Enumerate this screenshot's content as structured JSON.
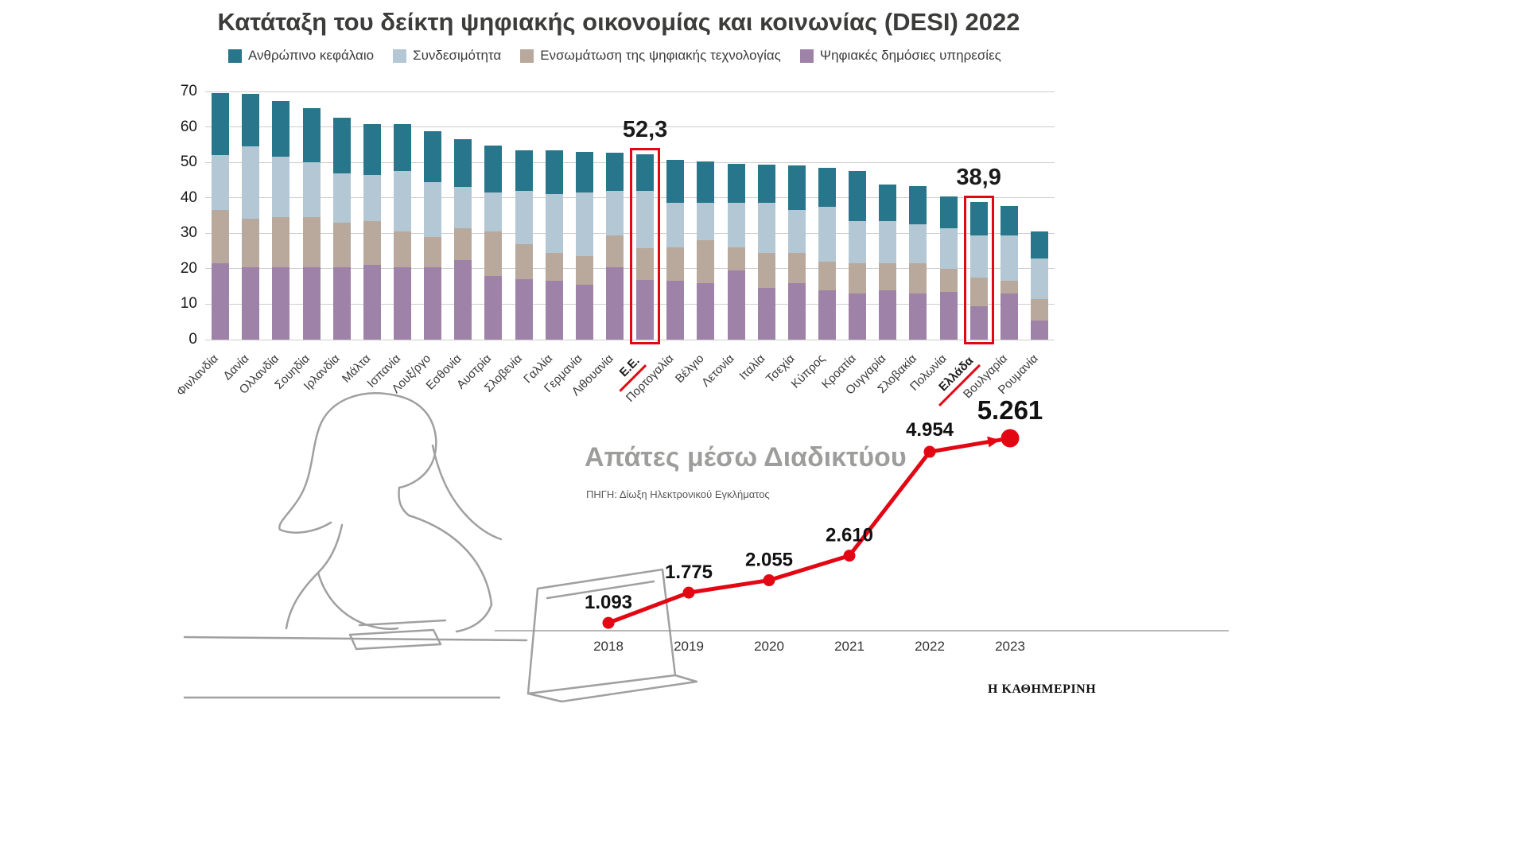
{
  "brand": {
    "logo_text": "Η ΚΑΘΗΜΕΡΙΝΗ"
  },
  "chart_data": [
    {
      "type": "bar",
      "stacked": true,
      "title": "Κατάταξη του δείκτη ψηφιακής οικονομίας και κοινωνίας (DESI) 2022",
      "grid": true,
      "legend_position": "top",
      "ylim": [
        0,
        70
      ],
      "yticks": [
        0,
        10,
        20,
        30,
        40,
        50,
        60,
        70
      ],
      "legend": [
        {
          "label": "Ανθρώπινο κεφάλαιο",
          "color": "#27768c"
        },
        {
          "label": "Συνδεσιμότητα",
          "color": "#b3c8d4"
        },
        {
          "label": "Ενσωμάτωση της ψηφιακής τεχνολογίας",
          "color": "#b8a99c"
        },
        {
          "label": "Ψηφιακές δημόσιες υπηρεσίες",
          "color": "#9f82a8"
        }
      ],
      "categories": [
        "Φινλανδία",
        "Δανία",
        "Ολλανδία",
        "Σουηδία",
        "Ιρλανδία",
        "Μάλτα",
        "Ισπανία",
        "Λουξ/ργο",
        "Εσθονία",
        "Αυστρία",
        "Σλοβενία",
        "Γαλλία",
        "Γερμανία",
        "Λιθουανία",
        "Ε.Ε.",
        "Πορτογαλία",
        "Βέλγιο",
        "Λετονία",
        "Ιταλία",
        "Τσεχία",
        "Κύπρος",
        "Κροατία",
        "Ουγγαρία",
        "Σλοβακία",
        "Πολωνία",
        "Ελλάδα",
        "Βουλγαρία",
        "Ρουμανία"
      ],
      "series": [
        {
          "name": "Ψηφιακές δημόσιες υπηρεσίες",
          "color": "#9f82a8",
          "values": [
            21.5,
            20.5,
            20.5,
            20.5,
            20.5,
            21,
            20.5,
            20.5,
            22.5,
            18,
            17,
            16.5,
            15.5,
            20.5,
            16.8,
            16.5,
            16,
            19.5,
            14.5,
            16,
            14,
            13,
            14,
            13,
            13.5,
            9.5,
            13,
            5.5
          ]
        },
        {
          "name": "Ενσωμάτωση της ψηφιακής τεχνολογίας",
          "color": "#b8a99c",
          "values": [
            15,
            13.5,
            14,
            14,
            12.5,
            12.5,
            10,
            8.5,
            9,
            12.5,
            10,
            8,
            8,
            9,
            9,
            9.5,
            12,
            6.5,
            10,
            8.5,
            8,
            8.5,
            7.5,
            8.5,
            6.5,
            8,
            3.5,
            6
          ]
        },
        {
          "name": "Συνδεσιμότητα",
          "color": "#b3c8d4",
          "values": [
            15.5,
            20.5,
            17,
            15.5,
            14,
            13,
            17,
            15.5,
            11.5,
            11,
            15,
            16.5,
            18,
            12.5,
            16.2,
            12.5,
            10.5,
            12.5,
            14,
            12,
            15.5,
            12,
            12,
            11,
            11.5,
            12,
            13,
            11.5
          ]
        },
        {
          "name": "Ανθρώπινο κεφάλαιο",
          "color": "#27768c",
          "values": [
            17.6,
            14.8,
            15.9,
            15.2,
            15.7,
            14.4,
            13.3,
            14.4,
            13.5,
            13.2,
            11.4,
            12.3,
            11.4,
            10.7,
            10.3,
            12.3,
            11.8,
            11.2,
            10.8,
            12.6,
            10.9,
            14,
            10.3,
            10.9,
            9,
            9.4,
            8.2,
            7.6
          ]
        }
      ],
      "totals": [
        69.6,
        69.3,
        67.4,
        65.2,
        62.7,
        60.9,
        60.8,
        58.9,
        56.5,
        54.7,
        53.4,
        53.3,
        52.9,
        52.7,
        52.3,
        50.8,
        50.3,
        49.7,
        49.3,
        49.1,
        48.4,
        47.5,
        43.8,
        43.4,
        40.5,
        38.9,
        37.7,
        30.6
      ],
      "annotations": [
        {
          "category": "Ε.Ε.",
          "index": 14,
          "label": "52,3",
          "total": 52.3
        },
        {
          "category": "Ελλάδα",
          "index": 25,
          "label": "38,9",
          "total": 38.9
        }
      ],
      "highlight_color": "#e30613"
    },
    {
      "type": "line",
      "title": "Απάτες μέσω Διαδικτύου",
      "source": "ΠΗΓΗ: Δίωξη Ηλεκτρονικού Εγκλήματος",
      "x": [
        "2018",
        "2019",
        "2020",
        "2021",
        "2022",
        "2023"
      ],
      "values": [
        1093,
        1775,
        2055,
        2610,
        4954,
        5261
      ],
      "value_labels": [
        "1.093",
        "1.775",
        "2.055",
        "2.610",
        "4.954",
        "5.261"
      ],
      "line_color": "#e30613",
      "emphasis_index": 5
    }
  ]
}
